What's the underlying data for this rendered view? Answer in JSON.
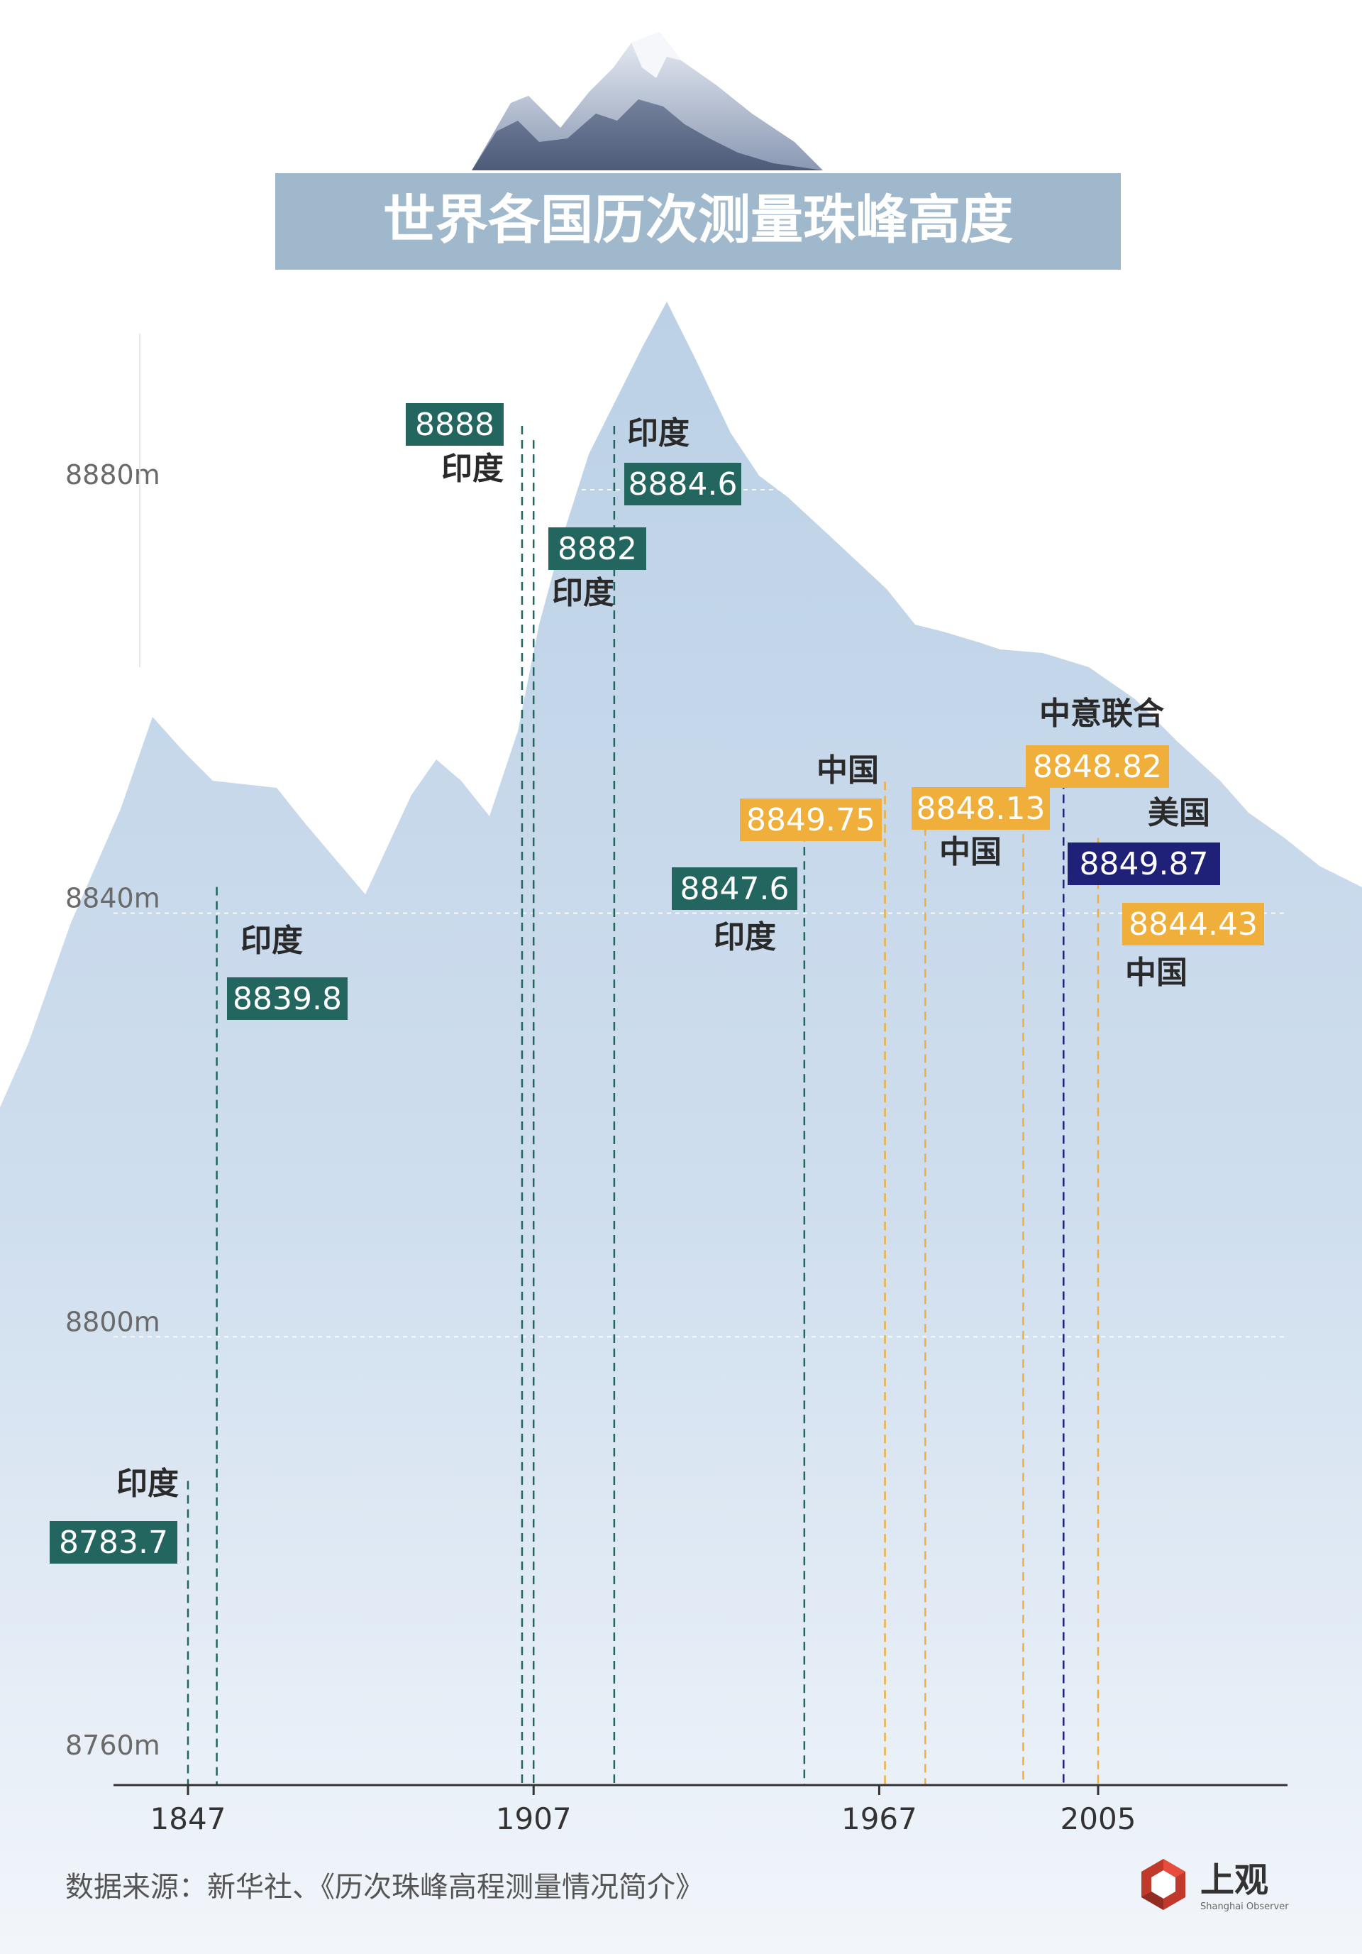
{
  "title": "世界各国历次测量珠峰高度",
  "source_text": "数据来源：新华社、《历次珠峰高程测量情况简介》",
  "logo": {
    "text": "上观",
    "subtext": "Shanghai Observer"
  },
  "colors": {
    "india": "#23665f",
    "china": "#efaf3a",
    "usa": "#1f2178",
    "joint": "#efaf3a",
    "title_bg": "#a0b8cc",
    "mountain_top": "#bcd1e6",
    "mountain_bottom": "#f4f7fb",
    "text_dark": "#2a2a2a",
    "axis_text": "#6a6a6a"
  },
  "chart_data": {
    "type": "timeline-stem",
    "title": "世界各国历次测量珠峰高度",
    "y_unit": "m",
    "ylim": [
      8760,
      8900
    ],
    "y_ticks": [
      {
        "value": 8760,
        "label": "8760m"
      },
      {
        "value": 8800,
        "label": "8800m"
      },
      {
        "value": 8840,
        "label": "8840m"
      },
      {
        "value": 8880,
        "label": "8880m"
      }
    ],
    "x_ticks": [
      {
        "value": 1847,
        "label": "1847"
      },
      {
        "value": 1907,
        "label": "1907"
      },
      {
        "value": 1967,
        "label": "1967"
      },
      {
        "value": 2005,
        "label": "2005"
      }
    ],
    "points": [
      {
        "year": 1847,
        "value": "8783.7",
        "country": "印度",
        "group": "india",
        "label_side": "above-left"
      },
      {
        "year": 1852,
        "value": "8839.8",
        "country": "印度",
        "group": "india",
        "label_side": "above-right"
      },
      {
        "year": 1905,
        "value": "8888",
        "country": "印度",
        "group": "india",
        "label_side": "left"
      },
      {
        "year": 1907,
        "value": "8882",
        "country": "印度",
        "group": "india",
        "label_side": "right"
      },
      {
        "year": 1921,
        "value": "8884.6",
        "country": "印度",
        "group": "india",
        "label_side": "above-right"
      },
      {
        "year": 1954,
        "value": "8847.6",
        "country": "印度",
        "group": "india",
        "label_side": "left"
      },
      {
        "year": 1968,
        "value": "8849.75",
        "country": "中国",
        "group": "china",
        "label_side": "left"
      },
      {
        "year": 1975,
        "value": "8848.13",
        "country": "中国",
        "group": "china",
        "label_side": "right"
      },
      {
        "year": 1992,
        "value": "8848.82",
        "country": "中意联合",
        "group": "joint",
        "label_side": "right"
      },
      {
        "year": 1999,
        "value": "8849.87",
        "country": "美国",
        "group": "usa",
        "label_side": "right"
      },
      {
        "year": 2005,
        "value": "8844.43",
        "country": "中国",
        "group": "china",
        "label_side": "right"
      }
    ]
  }
}
